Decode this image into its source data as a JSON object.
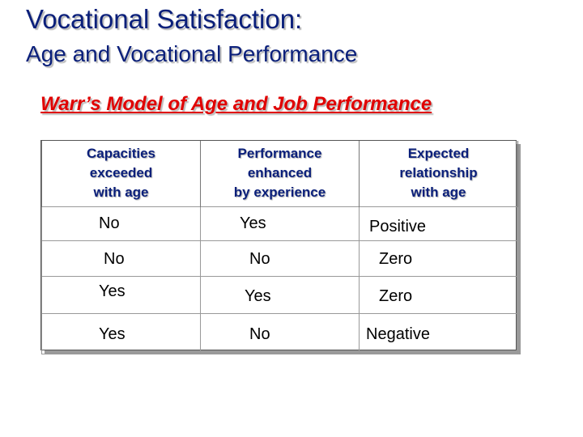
{
  "slide": {
    "title": "Vocational Satisfaction:",
    "subtitle": "Age and Vocational Performance",
    "model_title": "Warr’s Model of Age and Job Performance"
  },
  "table": {
    "headers": [
      [
        "Capacities",
        "exceeded",
        "with age"
      ],
      [
        "Performance",
        "enhanced",
        "by experience"
      ],
      [
        "Expected",
        "relationship",
        "with age"
      ]
    ],
    "rows": [
      [
        "No",
        "Yes",
        "Positive"
      ],
      [
        "No",
        "No",
        "Zero"
      ],
      [
        "Yes",
        "Yes",
        "Zero"
      ],
      [
        "Yes",
        "No",
        "Negative"
      ]
    ]
  }
}
